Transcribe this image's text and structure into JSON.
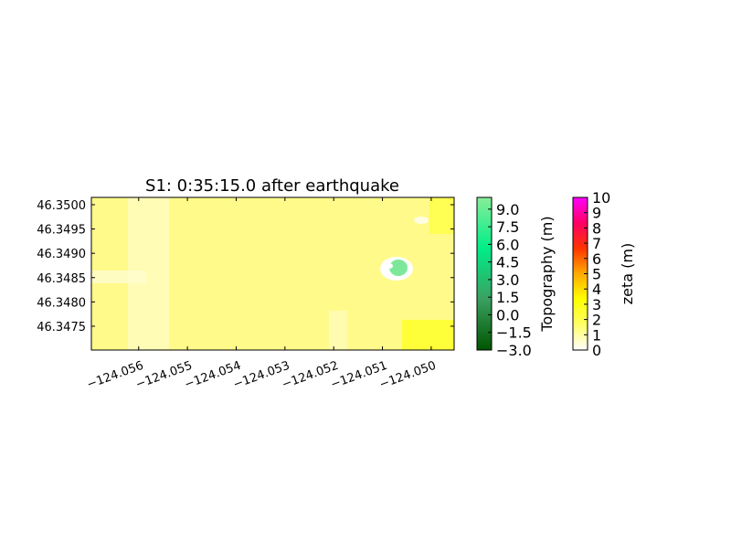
{
  "chart_data": {
    "type": "heatmap",
    "title": "S1: 0:35:15.0 after earthquake",
    "xlim": [
      -124.05697,
      -124.04953
    ],
    "ylim": [
      46.34701,
      46.35015
    ],
    "xticks": [
      {
        "value": -124.056,
        "label": "−124.056"
      },
      {
        "value": -124.055,
        "label": "−124.055"
      },
      {
        "value": -124.054,
        "label": "−124.054"
      },
      {
        "value": -124.053,
        "label": "−124.053"
      },
      {
        "value": -124.052,
        "label": "−124.052"
      },
      {
        "value": -124.051,
        "label": "−124.051"
      },
      {
        "value": -124.05,
        "label": "−124.050"
      }
    ],
    "yticks": [
      {
        "value": 46.3475,
        "label": "46.3475"
      },
      {
        "value": 46.348,
        "label": "46.3480"
      },
      {
        "value": 46.3485,
        "label": "46.3485"
      },
      {
        "value": 46.349,
        "label": "46.3490"
      },
      {
        "value": 46.3495,
        "label": "46.3495"
      },
      {
        "value": 46.35,
        "label": "46.3500"
      }
    ],
    "colorbars": [
      {
        "label": "Topography (m)",
        "lim": [
          -3,
          10
        ],
        "colors": [
          "#005500",
          "#3aa060",
          "#00ee88",
          "#88ee99"
        ],
        "ticks": [
          {
            "value": -3,
            "label": "−3.0"
          },
          {
            "value": -1.5,
            "label": "−1.5"
          },
          {
            "value": 0,
            "label": "0.0"
          },
          {
            "value": 1.5,
            "label": "1.5"
          },
          {
            "value": 3,
            "label": "3.0"
          },
          {
            "value": 4.5,
            "label": "4.5"
          },
          {
            "value": 6,
            "label": "6.0"
          },
          {
            "value": 7.5,
            "label": "7.5"
          },
          {
            "value": 9,
            "label": "9.0"
          }
        ]
      },
      {
        "label": "zeta (m)",
        "lim": [
          0,
          10
        ],
        "colors": [
          "#ffffff",
          "#ffff66",
          "#ffff00",
          "#ffaa00",
          "#ff3300",
          "#ff0066",
          "#ff00ff"
        ],
        "ticks": [
          0,
          1,
          2,
          3,
          4,
          5,
          6,
          7,
          8,
          9,
          10
        ]
      }
    ]
  }
}
